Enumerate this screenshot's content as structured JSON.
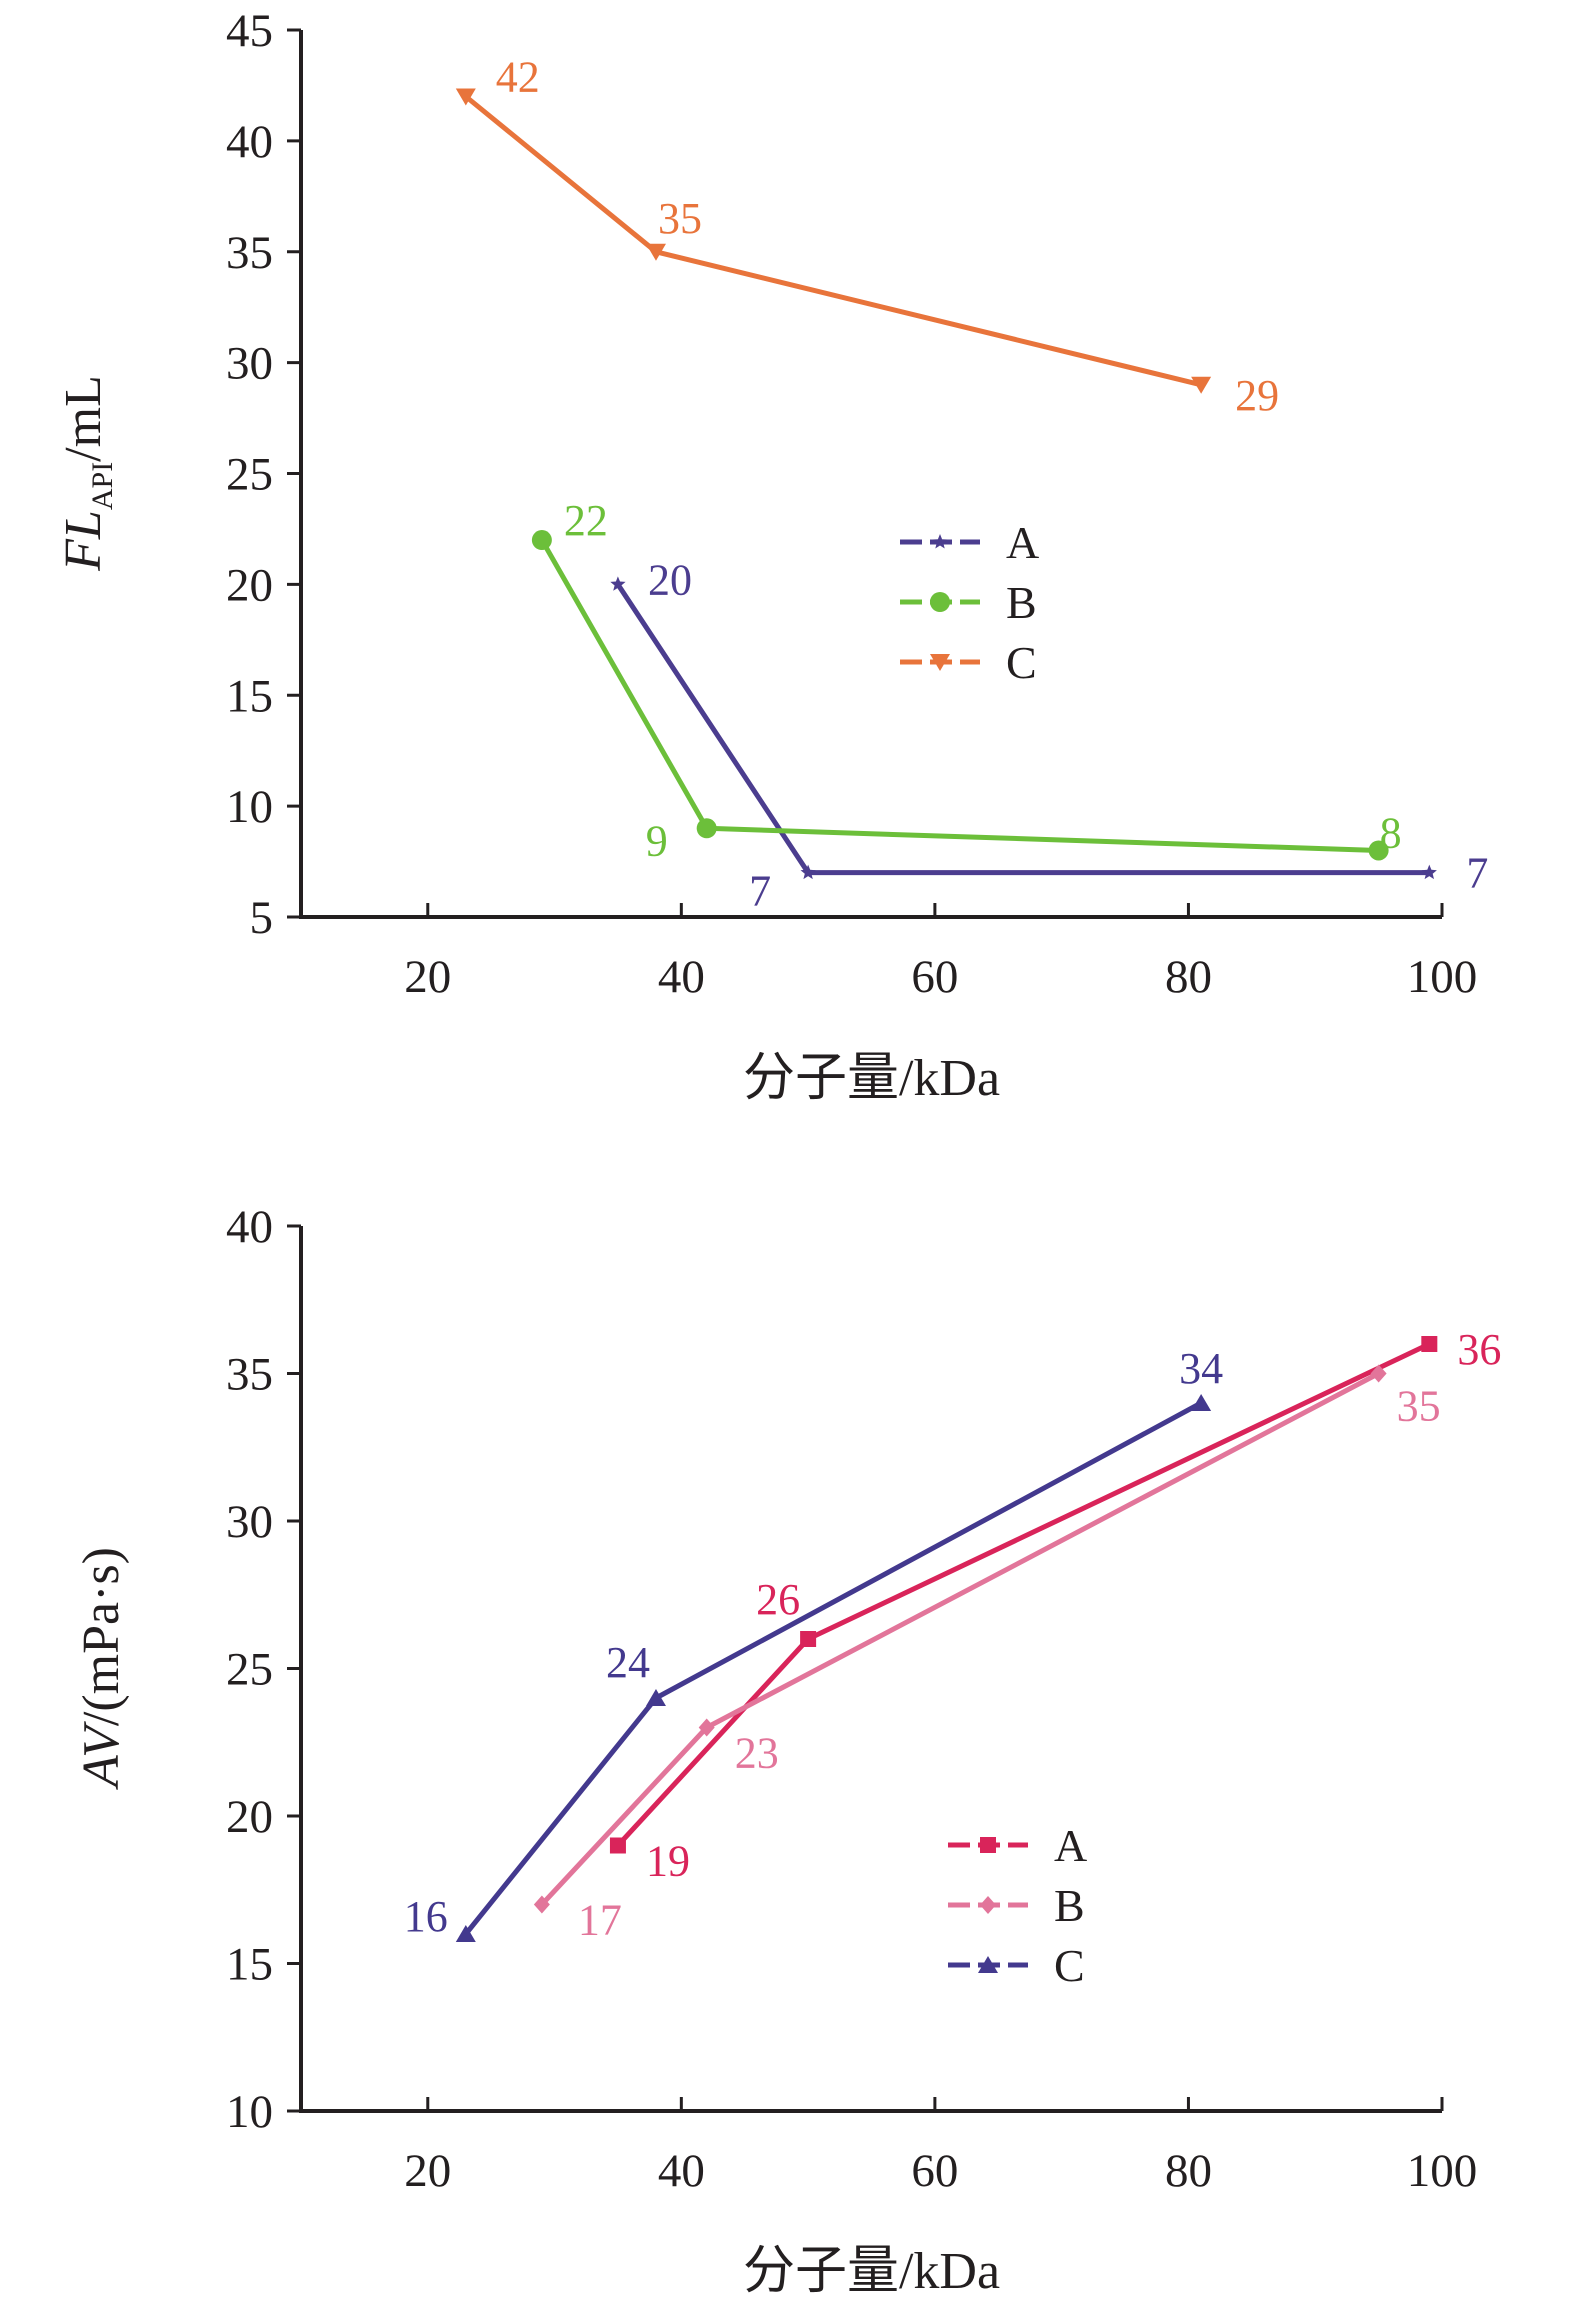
{
  "chart_data": [
    {
      "type": "line",
      "xlabel": "分子量/kDa",
      "ylabel_main": "FL",
      "ylabel_sub": "API",
      "ylabel_unit": "/mL",
      "xlim": [
        10,
        100
      ],
      "ylim": [
        5,
        45
      ],
      "xticks": [
        "20",
        "40",
        "60",
        "80",
        "100"
      ],
      "yticks": [
        "5",
        "10",
        "15",
        "20",
        "25",
        "30",
        "35",
        "40",
        "45"
      ],
      "legend_position": "center",
      "grid": false,
      "series": [
        {
          "name": "A",
          "color": "#4b3d8f",
          "marker": "star",
          "x": [
            35,
            50,
            99
          ],
          "y": [
            20,
            7,
            7
          ],
          "labels": [
            "20",
            "7",
            "7"
          ]
        },
        {
          "name": "B",
          "color": "#6cbf3a",
          "marker": "circle",
          "x": [
            29,
            42,
            95
          ],
          "y": [
            22,
            9,
            8
          ],
          "labels": [
            "22",
            "9",
            "8"
          ]
        },
        {
          "name": "C",
          "color": "#e8743b",
          "marker": "triangle-down",
          "x": [
            23,
            38,
            81
          ],
          "y": [
            42,
            35,
            29
          ],
          "labels": [
            "42",
            "35",
            "29"
          ]
        }
      ]
    },
    {
      "type": "line",
      "xlabel": "分子量/kDa",
      "ylabel_main": "AV",
      "ylabel_sub": "",
      "ylabel_unit": "/(mPa·s)",
      "xlim": [
        10,
        100
      ],
      "ylim": [
        10,
        40
      ],
      "xticks": [
        "20",
        "40",
        "60",
        "80",
        "100"
      ],
      "yticks": [
        "10",
        "15",
        "20",
        "25",
        "30",
        "35",
        "40"
      ],
      "legend_position": "lower-center",
      "grid": false,
      "series": [
        {
          "name": "A",
          "color": "#d9245a",
          "marker": "square",
          "x": [
            35,
            50,
            99
          ],
          "y": [
            19,
            26,
            36
          ],
          "labels": [
            "19",
            "26",
            "36"
          ]
        },
        {
          "name": "B",
          "color": "#e2759a",
          "marker": "diamond",
          "x": [
            29,
            42,
            95
          ],
          "y": [
            17,
            23,
            35
          ],
          "labels": [
            "17",
            "23",
            "35"
          ]
        },
        {
          "name": "C",
          "color": "#43398e",
          "marker": "triangle-up",
          "x": [
            23,
            38,
            81
          ],
          "y": [
            16,
            24,
            34
          ],
          "labels": [
            "16",
            "24",
            "34"
          ]
        }
      ]
    }
  ]
}
